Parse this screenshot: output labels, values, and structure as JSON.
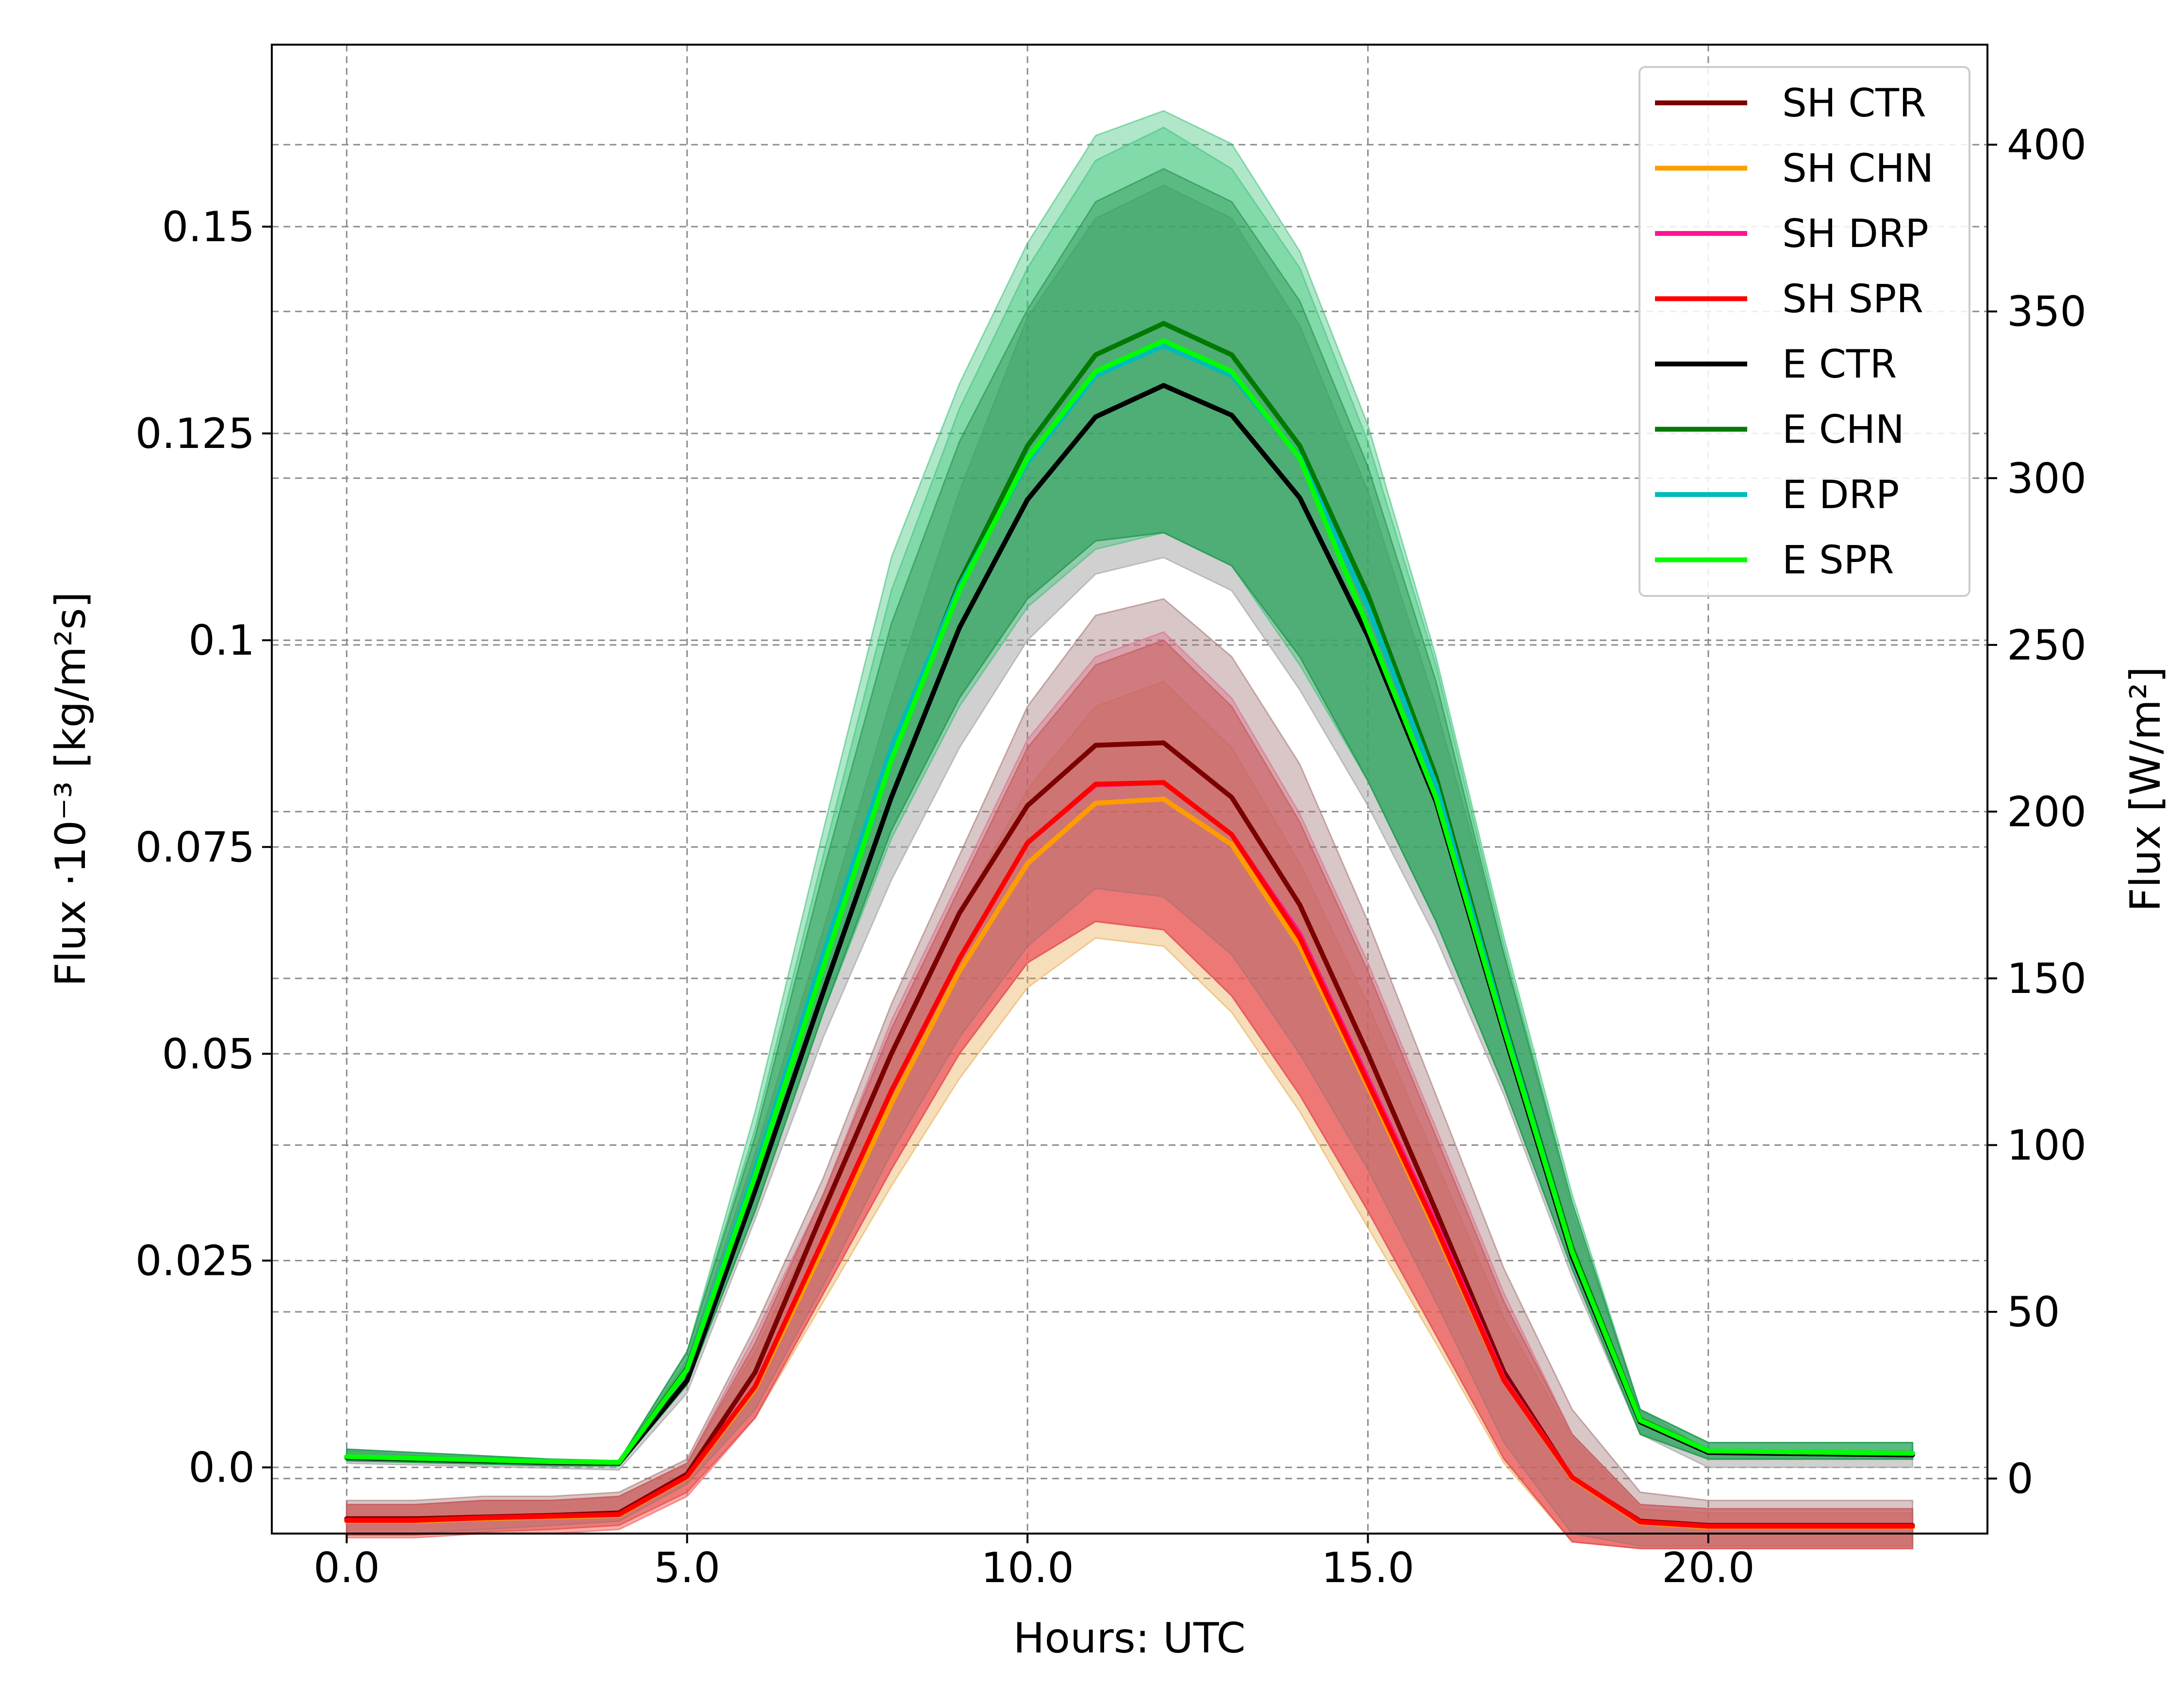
{
  "chart_data": {
    "type": "line",
    "title": "",
    "xlabel": "Hours: UTC",
    "ylabel_left": "Flux ·10⁻³ [kg/m²s]",
    "ylabel_right": "Flux [W/m²]",
    "xlim": [
      -1.1,
      24.1
    ],
    "ylim_left": [
      -0.008,
      0.172
    ],
    "ylim_right": [
      -16.5,
      430
    ],
    "x_ticks": [
      0,
      5,
      10,
      15,
      20
    ],
    "x_tick_labels": [
      "0.0",
      "5.0",
      "10.0",
      "15.0",
      "20.0"
    ],
    "y_left_ticks": [
      0,
      0.025,
      0.05,
      0.075,
      0.1,
      0.125,
      0.15
    ],
    "y_left_tick_labels": [
      "0.0",
      "0.025",
      "0.05",
      "0.075",
      "0.1",
      "0.125",
      "0.15"
    ],
    "y_right_ticks": [
      0,
      50,
      100,
      150,
      200,
      250,
      300,
      350,
      400
    ],
    "y_right_tick_labels": [
      "0",
      "50",
      "100",
      "150",
      "200",
      "250",
      "300",
      "350",
      "400"
    ],
    "grid": true,
    "legend_position": "top-right",
    "x": [
      0,
      1,
      2,
      3,
      4,
      5,
      6,
      7,
      8,
      9,
      10,
      11,
      12,
      13,
      14,
      15,
      16,
      17,
      18,
      19,
      20,
      21,
      22,
      23
    ],
    "bands": [
      {
        "color": "#e8a13a",
        "opacity": 0.35,
        "lower": [
          -0.0085,
          -0.0085,
          -0.008,
          -0.008,
          -0.0075,
          -0.0035,
          0.006,
          0.02,
          0.034,
          0.047,
          0.058,
          0.064,
          0.063,
          0.055,
          0.043,
          0.029,
          0.015,
          0.0005,
          -0.009,
          -0.0098,
          -0.0098,
          -0.0098,
          -0.0098,
          -0.0098
        ],
        "upper": [
          -0.0045,
          -0.0045,
          -0.004,
          -0.004,
          -0.0035,
          0.0005,
          0.014,
          0.031,
          0.05,
          0.067,
          0.082,
          0.092,
          0.095,
          0.087,
          0.073,
          0.056,
          0.037,
          0.018,
          0.0035,
          -0.005,
          -0.0055,
          -0.0055,
          -0.0055,
          -0.0055
        ]
      },
      {
        "color": "#ff5a8c",
        "opacity": 0.35,
        "lower": [
          -0.0085,
          -0.0085,
          -0.008,
          -0.008,
          -0.0075,
          -0.0035,
          0.006,
          0.021,
          0.036,
          0.05,
          0.061,
          0.066,
          0.065,
          0.057,
          0.045,
          0.031,
          0.016,
          0.001,
          -0.009,
          -0.0098,
          -0.0098,
          -0.0098,
          -0.0098,
          -0.0098
        ],
        "upper": [
          -0.0045,
          -0.0045,
          -0.004,
          -0.004,
          -0.0035,
          0.0005,
          0.016,
          0.033,
          0.054,
          0.071,
          0.088,
          0.098,
          0.101,
          0.093,
          0.079,
          0.061,
          0.041,
          0.021,
          0.004,
          -0.0045,
          -0.005,
          -0.005,
          -0.005,
          -0.005
        ]
      },
      {
        "color": "#e24b4b",
        "opacity": 0.55,
        "lower": [
          -0.0082,
          -0.0082,
          -0.0078,
          -0.0075,
          -0.007,
          -0.003,
          0.006,
          0.021,
          0.036,
          0.05,
          0.061,
          0.066,
          0.065,
          0.057,
          0.045,
          0.031,
          0.016,
          0.001,
          -0.009,
          -0.0098,
          -0.0098,
          -0.0098,
          -0.0098,
          -0.0098
        ],
        "upper": [
          -0.0045,
          -0.0045,
          -0.004,
          -0.004,
          -0.0035,
          0.0005,
          0.015,
          0.033,
          0.053,
          0.07,
          0.087,
          0.097,
          0.1,
          0.092,
          0.078,
          0.06,
          0.04,
          0.02,
          0.004,
          -0.0045,
          -0.005,
          -0.005,
          -0.005,
          -0.005
        ]
      },
      {
        "color": "#a07070",
        "opacity": 0.4,
        "lower": [
          -0.008,
          -0.008,
          -0.0075,
          -0.007,
          -0.0065,
          -0.002,
          0.007,
          0.022,
          0.038,
          0.052,
          0.063,
          0.07,
          0.069,
          0.062,
          0.05,
          0.036,
          0.02,
          0.003,
          -0.008,
          -0.0095,
          -0.0095,
          -0.0095,
          -0.0095,
          -0.0095
        ],
        "upper": [
          -0.004,
          -0.004,
          -0.0035,
          -0.0035,
          -0.003,
          0.001,
          0.017,
          0.035,
          0.056,
          0.074,
          0.092,
          0.103,
          0.105,
          0.098,
          0.085,
          0.066,
          0.045,
          0.024,
          0.007,
          -0.003,
          -0.004,
          -0.004,
          -0.004,
          -0.004
        ]
      },
      {
        "color": "#aaaaaa",
        "opacity": 0.55,
        "lower": [
          0.0005,
          0.0003,
          0.0001,
          -0.0001,
          -0.0003,
          0.009,
          0.03,
          0.052,
          0.071,
          0.087,
          0.1,
          0.108,
          0.11,
          0.106,
          0.094,
          0.08,
          0.064,
          0.045,
          0.023,
          0.004,
          0.0,
          0.0,
          0.0,
          0.0
        ],
        "upper": [
          0.002,
          0.0015,
          0.0012,
          0.0008,
          0.0007,
          0.013,
          0.038,
          0.065,
          0.093,
          0.118,
          0.139,
          0.151,
          0.155,
          0.151,
          0.138,
          0.118,
          0.092,
          0.062,
          0.031,
          0.007,
          0.002,
          0.002,
          0.002,
          0.002
        ]
      },
      {
        "color": "#2fbf71",
        "opacity": 0.38,
        "lower": [
          0.0008,
          0.0006,
          0.0004,
          0.0002,
          0.0002,
          0.01,
          0.031,
          0.055,
          0.076,
          0.092,
          0.104,
          0.111,
          0.113,
          0.109,
          0.097,
          0.083,
          0.066,
          0.046,
          0.024,
          0.004,
          0.001,
          0.001,
          0.001,
          0.001
        ],
        "upper": [
          0.0022,
          0.0018,
          0.0014,
          0.001,
          0.0008,
          0.014,
          0.043,
          0.077,
          0.11,
          0.131,
          0.148,
          0.161,
          0.164,
          0.16,
          0.147,
          0.126,
          0.098,
          0.064,
          0.033,
          0.007,
          0.003,
          0.003,
          0.003,
          0.003
        ]
      },
      {
        "color": "#2fbf71",
        "opacity": 0.35,
        "lower": [
          0.0008,
          0.0006,
          0.0004,
          0.0002,
          0.0002,
          0.01,
          0.031,
          0.055,
          0.077,
          0.093,
          0.105,
          0.112,
          0.113,
          0.109,
          0.098,
          0.083,
          0.066,
          0.046,
          0.024,
          0.004,
          0.001,
          0.001,
          0.001,
          0.001
        ],
        "upper": [
          0.0022,
          0.0018,
          0.0014,
          0.001,
          0.0008,
          0.014,
          0.041,
          0.074,
          0.106,
          0.128,
          0.145,
          0.158,
          0.162,
          0.157,
          0.145,
          0.124,
          0.097,
          0.063,
          0.032,
          0.007,
          0.003,
          0.003,
          0.003,
          0.003
        ]
      },
      {
        "color": "#1a8a3e",
        "opacity": 0.38,
        "lower": [
          0.0008,
          0.0006,
          0.0004,
          0.0002,
          0.0002,
          0.01,
          0.031,
          0.055,
          0.077,
          0.093,
          0.105,
          0.112,
          0.113,
          0.109,
          0.098,
          0.083,
          0.066,
          0.046,
          0.024,
          0.004,
          0.001,
          0.001,
          0.001,
          0.001
        ],
        "upper": [
          0.0022,
          0.0018,
          0.0014,
          0.001,
          0.0008,
          0.014,
          0.04,
          0.072,
          0.102,
          0.124,
          0.14,
          0.153,
          0.157,
          0.153,
          0.141,
          0.121,
          0.095,
          0.062,
          0.032,
          0.007,
          0.003,
          0.003,
          0.003,
          0.003
        ]
      }
    ],
    "series": [
      {
        "name": "SH CTR",
        "color": "#7b0000",
        "values": [
          -0.0062,
          -0.0062,
          -0.006,
          -0.0058,
          -0.0055,
          -0.0008,
          0.0115,
          0.031,
          0.05,
          0.067,
          0.08,
          0.0873,
          0.0876,
          0.081,
          0.068,
          0.05,
          0.031,
          0.0115,
          -0.0013,
          -0.0065,
          -0.007,
          -0.007,
          -0.007,
          -0.007
        ]
      },
      {
        "name": "SH CHN",
        "color": "#ff9d00",
        "values": [
          -0.0065,
          -0.0065,
          -0.0062,
          -0.006,
          -0.0058,
          -0.0012,
          0.0095,
          0.0265,
          0.044,
          0.06,
          0.073,
          0.0803,
          0.0808,
          0.0753,
          0.063,
          0.046,
          0.0285,
          0.0105,
          -0.0013,
          -0.0067,
          -0.0072,
          -0.0072,
          -0.0072,
          -0.0072
        ]
      },
      {
        "name": "SH DRP",
        "color": "#ff1493",
        "values": [
          -0.0064,
          -0.0064,
          -0.0061,
          -0.0059,
          -0.0057,
          -0.0011,
          0.0098,
          0.0275,
          0.0455,
          0.0615,
          0.0755,
          0.0825,
          0.0828,
          0.0765,
          0.0645,
          0.047,
          0.0295,
          0.0107,
          -0.0012,
          -0.0066,
          -0.0071,
          -0.0071,
          -0.0071,
          -0.0071
        ]
      },
      {
        "name": "SH SPR",
        "color": "#ff0000",
        "values": [
          -0.0064,
          -0.0064,
          -0.0061,
          -0.0059,
          -0.0057,
          -0.0011,
          0.0098,
          0.0275,
          0.0455,
          0.0615,
          0.0755,
          0.0826,
          0.0828,
          0.0765,
          0.064,
          0.0465,
          0.029,
          0.0105,
          -0.0012,
          -0.0066,
          -0.0071,
          -0.0071,
          -0.0071,
          -0.0071
        ]
      },
      {
        "name": "E CTR",
        "color": "#000000",
        "values": [
          0.0012,
          0.001,
          0.0008,
          0.0006,
          0.0005,
          0.0105,
          0.0335,
          0.0575,
          0.081,
          0.1015,
          0.117,
          0.127,
          0.1308,
          0.1272,
          0.1172,
          0.1005,
          0.0805,
          0.0525,
          0.0255,
          0.0055,
          0.0018,
          0.0017,
          0.0016,
          0.0015
        ]
      },
      {
        "name": "E CHN",
        "color": "#007a00",
        "values": [
          0.0013,
          0.0011,
          0.0009,
          0.0007,
          0.0006,
          0.012,
          0.0355,
          0.061,
          0.086,
          0.107,
          0.1235,
          0.1345,
          0.1383,
          0.1345,
          0.1235,
          0.1055,
          0.0835,
          0.054,
          0.0265,
          0.0058,
          0.002,
          0.0019,
          0.0018,
          0.0017
        ]
      },
      {
        "name": "E DRP",
        "color": "#00bbbb",
        "values": [
          0.0013,
          0.0011,
          0.0009,
          0.0007,
          0.0006,
          0.0118,
          0.036,
          0.062,
          0.087,
          0.1065,
          0.1215,
          0.132,
          0.1356,
          0.132,
          0.1222,
          0.104,
          0.0825,
          0.0535,
          0.026,
          0.0057,
          0.002,
          0.0019,
          0.0018,
          0.0017
        ]
      },
      {
        "name": "E SPR",
        "color": "#00ff00",
        "values": [
          0.0013,
          0.0011,
          0.0009,
          0.0007,
          0.0006,
          0.0118,
          0.0352,
          0.0605,
          0.0855,
          0.106,
          0.122,
          0.1325,
          0.1362,
          0.1325,
          0.122,
          0.1015,
          0.081,
          0.053,
          0.026,
          0.0057,
          0.002,
          0.0019,
          0.0018,
          0.0017
        ]
      }
    ]
  }
}
